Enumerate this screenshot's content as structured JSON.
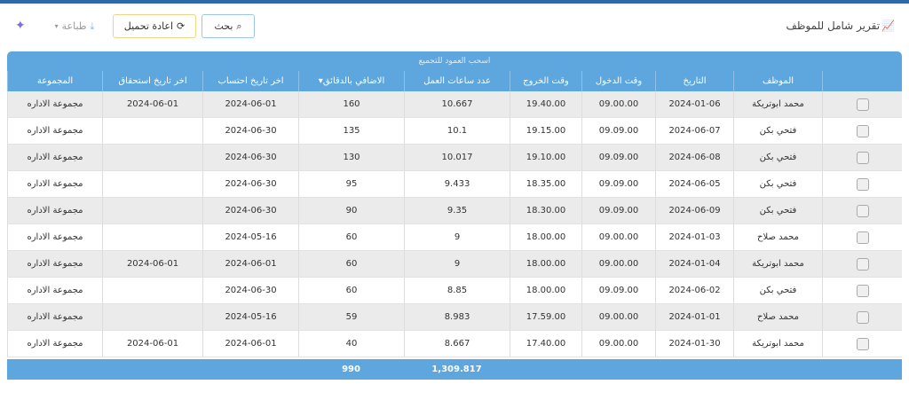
{
  "header": {
    "title": "تقرير شامل للموظف",
    "search_label": "بحث",
    "reload_label": "اعادة تحميل",
    "print_label": "طباعة"
  },
  "grid": {
    "group_panel": "اسحب العمود للتجميع",
    "columns": [
      "الموظف",
      "التاريخ",
      "وقت الدخول",
      "وقت الخروج",
      "عدد ساعات العمل",
      "الاضافي بالدقائق",
      "اخر تاريخ احتساب",
      "اخر تاريخ استحقاق",
      "المجموعة"
    ],
    "rows": [
      [
        "محمد ابوتريكة",
        "2024-01-06",
        "09.00.00",
        "19.40.00",
        "10.667",
        "160",
        "2024-06-01",
        "2024-06-01",
        "مجموعة الاداره"
      ],
      [
        "فتحي بكن",
        "2024-06-07",
        "09.09.00",
        "19.15.00",
        "10.1",
        "135",
        "2024-06-30",
        "",
        "مجموعة الاداره"
      ],
      [
        "فتحي بكن",
        "2024-06-08",
        "09.09.00",
        "19.10.00",
        "10.017",
        "130",
        "2024-06-30",
        "",
        "مجموعة الاداره"
      ],
      [
        "فتحي بكن",
        "2024-06-05",
        "09.09.00",
        "18.35.00",
        "9.433",
        "95",
        "2024-06-30",
        "",
        "مجموعة الاداره"
      ],
      [
        "فتحي بكن",
        "2024-06-09",
        "09.09.00",
        "18.30.00",
        "9.35",
        "90",
        "2024-06-30",
        "",
        "مجموعة الاداره"
      ],
      [
        "محمد صلاح",
        "2024-01-03",
        "09.00.00",
        "18.00.00",
        "9",
        "60",
        "2024-05-16",
        "",
        "مجموعة الاداره"
      ],
      [
        "محمد ابوتريكة",
        "2024-01-04",
        "09.00.00",
        "18.00.00",
        "9",
        "60",
        "2024-06-01",
        "2024-06-01",
        "مجموعة الاداره"
      ],
      [
        "فتحي بكن",
        "2024-06-02",
        "09.09.00",
        "18.00.00",
        "8.85",
        "60",
        "2024-06-30",
        "",
        "مجموعة الاداره"
      ],
      [
        "محمد صلاح",
        "2024-01-01",
        "09.00.00",
        "17.59.00",
        "8.983",
        "59",
        "2024-05-16",
        "",
        "مجموعة الاداره"
      ],
      [
        "محمد ابوتريكة",
        "2024-01-30",
        "09.00.00",
        "17.40.00",
        "8.667",
        "40",
        "2024-06-01",
        "2024-06-01",
        "مجموعة الاداره"
      ]
    ],
    "totals": {
      "hours": "1,309.817",
      "overtime": "990"
    },
    "sorted_column": "الاضافي بالدقائق"
  }
}
